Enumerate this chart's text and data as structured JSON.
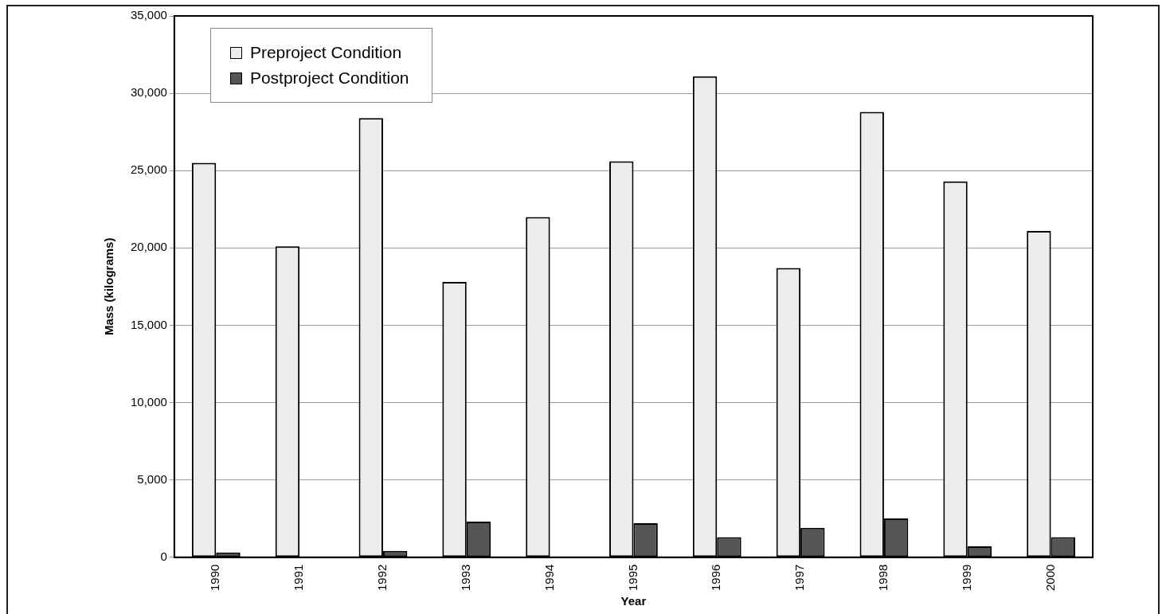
{
  "chart_data": {
    "type": "bar",
    "xlabel": "Year",
    "ylabel": "Mass (kilograms)",
    "categories": [
      "1990",
      "1991",
      "1992",
      "1993",
      "1994",
      "1995",
      "1996",
      "1997",
      "1998",
      "1999",
      "2000"
    ],
    "series": [
      {
        "name": "Preproject Condition",
        "color": "#ececec",
        "values": [
          25500,
          20100,
          28400,
          17800,
          22000,
          25600,
          31100,
          18700,
          28800,
          24300,
          21100
        ]
      },
      {
        "name": "Postproject Condition",
        "color": "#555555",
        "values": [
          300,
          0,
          400,
          2300,
          0,
          2200,
          1300,
          1900,
          2500,
          700,
          1300
        ]
      }
    ],
    "ylim": [
      0,
      35000
    ],
    "yticks": [
      0,
      {
        "value": 5000,
        "label": "5,000"
      },
      {
        "value": 10000,
        "label": "10,000"
      },
      {
        "value": 15000,
        "label": "15,000"
      },
      {
        "value": 20000,
        "label": "20,000"
      },
      {
        "value": 25000,
        "label": "25,000"
      },
      {
        "value": 30000,
        "label": "30,000"
      },
      {
        "value": 35000,
        "label": "35,000"
      }
    ],
    "grid": "y",
    "legend": "top left"
  }
}
